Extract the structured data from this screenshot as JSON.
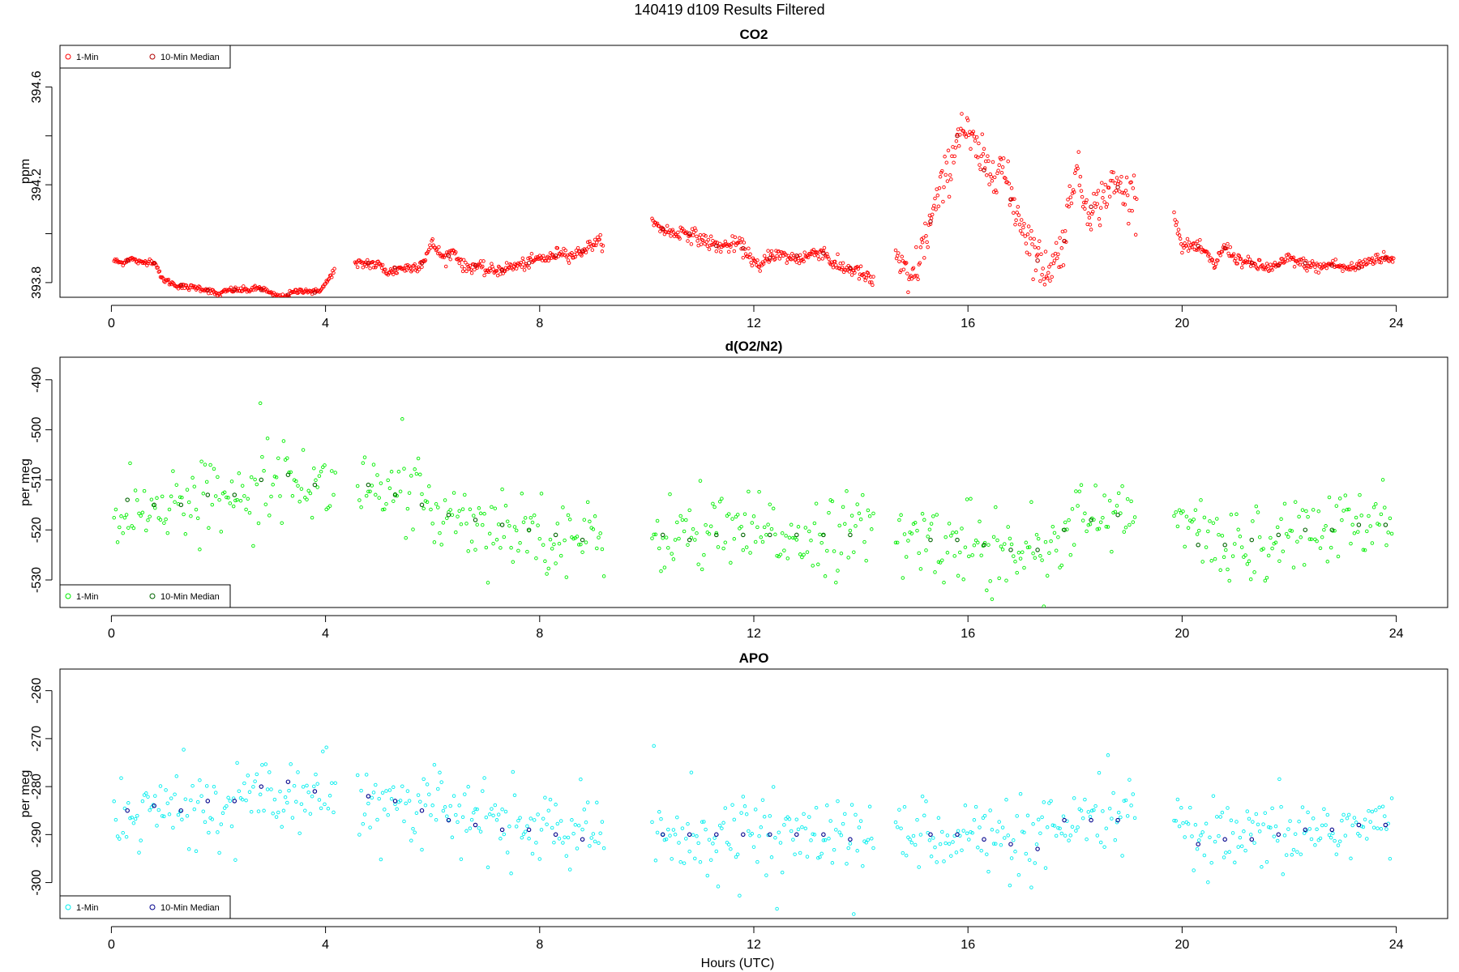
{
  "figure": {
    "title": "140419   d109   Results Filtered",
    "xlabel": "Hours (UTC)"
  },
  "chart_data": [
    {
      "type": "scatter",
      "title": "CO2",
      "ylabel": "ppm",
      "xlim": [
        -0.96,
        24.96
      ],
      "ylim": [
        393.74,
        394.77
      ],
      "xticks": [
        0,
        4,
        8,
        12,
        16,
        20,
        24
      ],
      "yticks": [
        393.8,
        394.0,
        394.2,
        394.4,
        394.6
      ],
      "ytick_labels": [
        "393.8",
        "",
        "394.2",
        "",
        "394.6"
      ],
      "grid": false,
      "legend_position": "top-left",
      "colors": {
        "one_min": "#ff0000",
        "median": "#b00000"
      },
      "series": [
        {
          "name": "1-Min",
          "marker": "open-circle",
          "color": "#ff0000",
          "segments": [
            {
              "x": [
                0.05,
                0.2,
                0.35,
                0.55,
                0.75,
                0.85,
                0.92,
                1.0,
                1.2,
                1.4,
                1.6,
                1.8,
                2.0,
                2.2,
                2.4,
                2.6,
                2.8,
                3.0,
                3.2,
                3.4,
                3.6,
                3.8,
                3.95,
                4.05,
                4.18
              ],
              "y": [
                393.89,
                393.88,
                393.9,
                393.88,
                393.89,
                393.87,
                393.82,
                393.81,
                393.79,
                393.78,
                393.78,
                393.77,
                393.75,
                393.77,
                393.77,
                393.77,
                393.78,
                393.75,
                393.74,
                393.76,
                393.77,
                393.76,
                393.78,
                393.81,
                393.86
              ],
              "noise": 0.006
            },
            {
              "x": [
                4.55,
                4.8,
                5.0,
                5.2,
                5.4,
                5.6,
                5.8,
                6.0,
                6.2,
                6.4,
                6.6,
                6.8,
                7.0,
                7.2,
                7.4,
                7.6,
                7.8,
                8.0,
                8.2,
                8.4,
                8.6,
                8.8,
                9.0,
                9.2
              ],
              "y": [
                393.87,
                393.88,
                393.87,
                393.84,
                393.86,
                393.86,
                393.88,
                393.96,
                393.9,
                393.93,
                393.86,
                393.87,
                393.85,
                393.85,
                393.86,
                393.87,
                393.88,
                393.9,
                393.9,
                393.93,
                393.91,
                393.93,
                393.96,
                393.97
              ],
              "noise": 0.012
            },
            {
              "x": [
                10.1,
                10.3,
                10.5,
                10.7,
                10.9,
                11.1,
                11.3,
                11.5,
                11.7,
                11.9,
                12.1,
                12.3,
                12.5,
                12.7,
                12.9,
                13.1,
                13.3,
                13.5,
                13.7,
                13.9,
                14.1,
                14.25
              ],
              "y": [
                394.04,
                394.02,
                394.0,
                394.01,
                393.99,
                393.97,
                393.95,
                393.95,
                393.96,
                393.92,
                393.85,
                393.92,
                393.91,
                393.9,
                393.9,
                393.92,
                393.93,
                393.87,
                393.86,
                393.85,
                393.82,
                393.8
              ],
              "noise": 0.015
            },
            {
              "x": [
                14.65,
                14.9,
                15.1,
                15.3,
                15.5,
                15.7,
                15.85,
                16.0,
                16.2,
                16.4,
                16.6,
                16.8,
                17.0,
                17.2,
                17.4,
                17.6,
                17.8,
                18.0,
                18.2,
                18.4,
                18.6,
                18.8,
                19.0,
                19.15
              ],
              "y": [
                393.93,
                393.78,
                393.9,
                394.05,
                394.18,
                394.3,
                394.45,
                394.4,
                394.32,
                394.25,
                394.3,
                394.15,
                394.05,
                393.95,
                393.85,
                393.88,
                393.98,
                394.28,
                394.12,
                394.1,
                394.18,
                394.2,
                394.15,
                394.18
              ],
              "noise": 0.045
            },
            {
              "x": [
                19.85,
                20.0,
                20.2,
                20.4,
                20.6,
                20.8,
                21.0,
                21.2,
                21.4,
                21.6,
                21.8,
                22.0,
                22.2,
                22.4,
                22.6,
                22.8,
                23.0,
                23.2,
                23.4,
                23.6,
                23.8,
                23.95
              ],
              "y": [
                394.08,
                393.95,
                393.95,
                393.93,
                393.87,
                393.95,
                393.9,
                393.88,
                393.87,
                393.86,
                393.87,
                393.9,
                393.88,
                393.87,
                393.86,
                393.88,
                393.86,
                393.86,
                393.88,
                393.9,
                393.9,
                393.89
              ],
              "noise": 0.012
            }
          ]
        },
        {
          "name": "10-Min Median",
          "marker": "open-circle",
          "color": "#b00000",
          "x": [
            0.3,
            0.8,
            1.3,
            1.8,
            2.3,
            2.8,
            3.3,
            3.8,
            4.8,
            5.3,
            5.8,
            6.3,
            6.8,
            7.3,
            7.8,
            8.3,
            8.8,
            10.3,
            10.8,
            11.3,
            11.8,
            12.3,
            12.8,
            13.3,
            13.8,
            15.3,
            15.8,
            16.3,
            16.8,
            17.3,
            17.8,
            18.3,
            18.8,
            20.3,
            20.8,
            21.3,
            21.8,
            22.3,
            22.8,
            23.3,
            23.8
          ],
          "y": [
            393.89,
            393.88,
            393.79,
            393.77,
            393.77,
            393.77,
            393.75,
            393.76,
            393.88,
            393.86,
            393.88,
            393.91,
            393.87,
            393.85,
            393.88,
            393.91,
            393.93,
            394.02,
            394.0,
            393.95,
            393.94,
            393.9,
            393.91,
            393.92,
            393.86,
            394.05,
            394.4,
            394.26,
            394.14,
            393.89,
            393.97,
            394.11,
            394.19,
            393.95,
            393.94,
            393.88,
            393.87,
            393.88,
            393.87,
            393.86,
            393.9
          ]
        }
      ]
    },
    {
      "type": "scatter",
      "title": "d(O2/N2)",
      "ylabel": "per meg",
      "xlim": [
        -0.96,
        24.96
      ],
      "ylim": [
        -535.5,
        -485.5
      ],
      "xticks": [
        0,
        4,
        8,
        12,
        16,
        20,
        24
      ],
      "yticks": [
        -530,
        -520,
        -510,
        -500,
        -490
      ],
      "ytick_labels": [
        "-530",
        "-520",
        "-510",
        "-500",
        "-490"
      ],
      "grid": false,
      "legend_position": "bottom-left",
      "colors": {
        "one_min": "#00ee00",
        "median": "#006400"
      },
      "series": [
        {
          "name": "1-Min",
          "marker": "open-circle",
          "color": "#00ee00",
          "segments": [
            {
              "x": [
                0.05,
                1.0,
                2.0,
                3.0,
                4.2
              ],
              "y": [
                -517,
                -515,
                -513,
                -509,
                -512
              ],
              "noise": 3.5
            },
            {
              "x": [
                4.6,
                5.5,
                6.5,
                7.5,
                8.5,
                9.2
              ],
              "y": [
                -510,
                -514,
                -517,
                -519,
                -521,
                -523
              ],
              "noise": 3.8
            },
            {
              "x": [
                10.1,
                11.0,
                12.0,
                13.0,
                14.25
              ],
              "y": [
                -521,
                -521,
                -521,
                -521,
                -520
              ],
              "noise": 3.8
            },
            {
              "x": [
                14.65,
                15.5,
                16.5,
                17.2,
                18.2,
                19.15
              ],
              "y": [
                -522,
                -522,
                -523,
                -524,
                -518,
                -517
              ],
              "noise": 4.0
            },
            {
              "x": [
                19.85,
                20.5,
                21.5,
                22.5,
                23.95
              ],
              "y": [
                -517,
                -523,
                -522,
                -520,
                -519
              ],
              "noise": 3.8
            }
          ]
        },
        {
          "name": "10-Min Median",
          "marker": "open-circle",
          "color": "#006400",
          "x": [
            0.3,
            0.8,
            1.3,
            1.8,
            2.3,
            2.8,
            3.3,
            3.8,
            4.8,
            5.3,
            5.8,
            6.3,
            6.8,
            7.3,
            7.8,
            8.3,
            8.8,
            10.3,
            10.8,
            11.3,
            11.8,
            12.3,
            12.8,
            13.3,
            13.8,
            15.3,
            15.8,
            16.3,
            16.8,
            17.3,
            17.8,
            18.3,
            18.8,
            20.3,
            20.8,
            21.3,
            21.8,
            22.3,
            22.8,
            23.3,
            23.8
          ],
          "y": [
            -514,
            -515,
            -515,
            -513,
            -513,
            -510,
            -509,
            -511,
            -511,
            -513,
            -515,
            -517,
            -518,
            -519,
            -520,
            -521,
            -522,
            -521,
            -522,
            -521,
            -521,
            -521,
            -521,
            -521,
            -521,
            -522,
            -522,
            -523,
            -524,
            -524,
            -520,
            -518,
            -517,
            -523,
            -523,
            -522,
            -521,
            -520,
            -520,
            -519,
            -519
          ]
        }
      ]
    },
    {
      "type": "scatter",
      "title": "APO",
      "ylabel": "per meg",
      "xlim": [
        -0.96,
        24.96
      ],
      "ylim": [
        -307.5,
        -255.5
      ],
      "xticks": [
        0,
        4,
        8,
        12,
        16,
        20,
        24
      ],
      "yticks": [
        -300,
        -290,
        -280,
        -270,
        -260
      ],
      "ytick_labels": [
        "-300",
        "-290",
        "-280",
        "-270",
        "-260"
      ],
      "grid": false,
      "legend_position": "bottom-left",
      "colors": {
        "one_min": "#00eeee",
        "median": "#00008b"
      },
      "series": [
        {
          "name": "1-Min",
          "marker": "open-circle",
          "color": "#00eeee",
          "segments": [
            {
              "x": [
                0.05,
                1.0,
                2.0,
                3.0,
                4.2
              ],
              "y": [
                -286,
                -285,
                -284,
                -280,
                -282
              ],
              "noise": 3.8
            },
            {
              "x": [
                4.6,
                5.5,
                6.5,
                7.5,
                8.5,
                9.2
              ],
              "y": [
                -281,
                -283,
                -286,
                -288,
                -289,
                -291
              ],
              "noise": 3.8
            },
            {
              "x": [
                10.1,
                11.0,
                12.0,
                13.0,
                14.25
              ],
              "y": [
                -290,
                -290,
                -290,
                -290,
                -291
              ],
              "noise": 3.8
            },
            {
              "x": [
                14.65,
                15.5,
                16.5,
                17.2,
                18.2,
                19.15
              ],
              "y": [
                -290,
                -289,
                -291,
                -293,
                -287,
                -287
              ],
              "noise": 4.0
            },
            {
              "x": [
                19.85,
                20.5,
                21.5,
                22.5,
                23.95
              ],
              "y": [
                -287,
                -292,
                -291,
                -289,
                -288
              ],
              "noise": 3.8
            }
          ]
        },
        {
          "name": "10-Min Median",
          "marker": "open-circle",
          "color": "#00008b",
          "x": [
            0.3,
            0.8,
            1.3,
            1.8,
            2.3,
            2.8,
            3.3,
            3.8,
            4.8,
            5.3,
            5.8,
            6.3,
            6.8,
            7.3,
            7.8,
            8.3,
            8.8,
            10.3,
            10.8,
            11.3,
            11.8,
            12.3,
            12.8,
            13.3,
            13.8,
            15.3,
            15.8,
            16.3,
            16.8,
            17.3,
            17.8,
            18.3,
            18.8,
            20.3,
            20.8,
            21.3,
            21.8,
            22.3,
            22.8,
            23.3,
            23.8
          ],
          "y": [
            -285,
            -284,
            -285,
            -283,
            -283,
            -280,
            -279,
            -281,
            -282,
            -283,
            -285,
            -287,
            -288,
            -289,
            -289,
            -290,
            -291,
            -290,
            -290,
            -290,
            -290,
            -290,
            -290,
            -290,
            -291,
            -290,
            -290,
            -291,
            -292,
            -293,
            -287,
            -287,
            -287,
            -292,
            -291,
            -291,
            -290,
            -289,
            -289,
            -288,
            -288
          ]
        }
      ]
    }
  ]
}
